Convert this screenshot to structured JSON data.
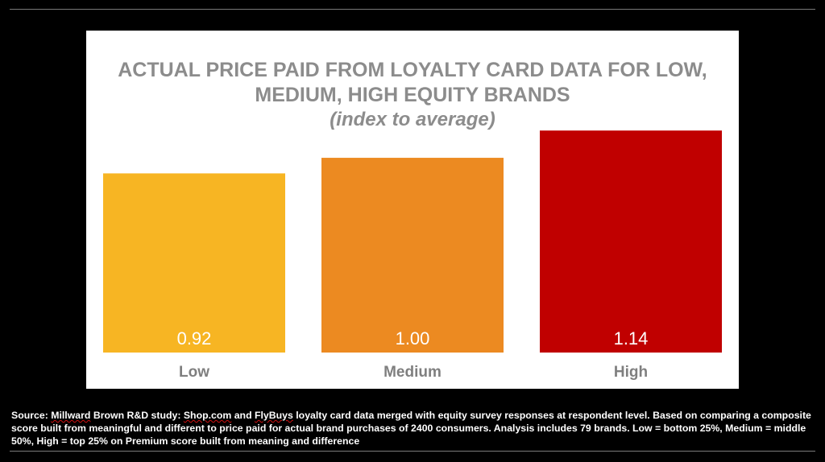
{
  "chart_data": {
    "type": "bar",
    "title": "ACTUAL PRICE PAID FROM LOYALTY CARD DATA FOR LOW, MEDIUM, HIGH EQUITY BRANDS",
    "subtitle": "(index to average)",
    "categories": [
      "Low",
      "Medium",
      "High"
    ],
    "values": [
      0.92,
      1.0,
      1.14
    ],
    "value_labels": [
      "0.92",
      "1.00",
      "1.14"
    ],
    "colors": [
      "#F7B523",
      "#EC8A21",
      "#C00000"
    ],
    "xlabel": "",
    "ylabel": "",
    "ylim": [
      0,
      1.24
    ],
    "grid": false
  },
  "source": {
    "prefix": "Source: ",
    "millward": "Millward",
    "text1": " Brown R&D study: ",
    "shop": "Shop.com",
    "text2": " and ",
    "flybuys": "FlyBuys",
    "text3": " loyalty card data merged with equity survey responses at respondent level. Based on comparing a composite score built from meaningful and different to price paid for actual brand purchases of 2400 consumers. Analysis includes 79 brands. Low = bottom 25%, Medium = middle 50%, High = top 25% on  Premium score built from meaning and difference"
  }
}
